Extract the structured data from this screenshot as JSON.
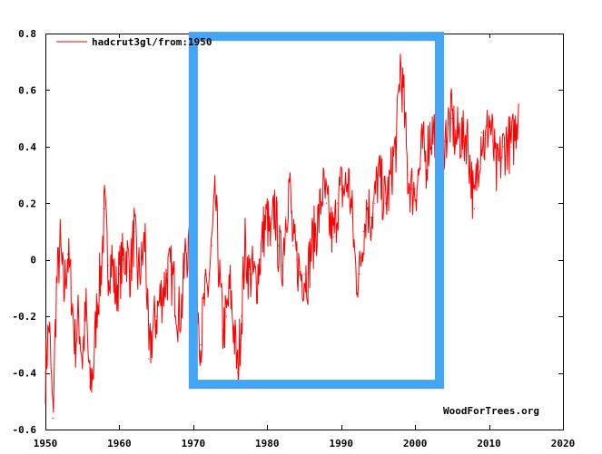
{
  "chart_data": {
    "type": "line",
    "title": "",
    "xlabel": "",
    "ylabel": "",
    "xlim": [
      1950,
      2020
    ],
    "ylim": [
      -0.6,
      0.8
    ],
    "x_ticks": [
      "1950",
      "1960",
      "1970",
      "1980",
      "1990",
      "2000",
      "2010",
      "2020"
    ],
    "y_ticks": [
      "0.8",
      "0.6",
      "0.4",
      "0.2",
      "0",
      "-0.2",
      "-0.4",
      "-0.6"
    ],
    "grid": false,
    "legend_position": "top-left",
    "series": [
      {
        "name": "hadcrut3gl/from:1950",
        "color": "#ff0000",
        "x": [
          1950.0,
          1950.5,
          1951.0,
          1951.5,
          1952.0,
          1952.5,
          1953.0,
          1953.5,
          1954.0,
          1954.5,
          1955.0,
          1955.5,
          1956.0,
          1956.5,
          1957.0,
          1957.5,
          1958.0,
          1958.5,
          1959.0,
          1959.5,
          1960.0,
          1960.5,
          1961.0,
          1961.5,
          1962.0,
          1962.5,
          1963.0,
          1963.5,
          1964.0,
          1964.5,
          1965.0,
          1965.5,
          1966.0,
          1966.5,
          1967.0,
          1967.5,
          1968.0,
          1968.5,
          1969.0,
          1969.5,
          1970.0,
          1970.5,
          1971.0,
          1971.5,
          1972.0,
          1972.5,
          1973.0,
          1973.5,
          1974.0,
          1974.5,
          1975.0,
          1975.5,
          1976.0,
          1976.5,
          1977.0,
          1977.5,
          1978.0,
          1978.5,
          1979.0,
          1979.5,
          1980.0,
          1980.5,
          1981.0,
          1981.5,
          1982.0,
          1982.5,
          1983.0,
          1983.5,
          1984.0,
          1984.5,
          1985.0,
          1985.5,
          1986.0,
          1986.5,
          1987.0,
          1987.5,
          1988.0,
          1988.5,
          1989.0,
          1989.5,
          1990.0,
          1990.5,
          1991.0,
          1991.5,
          1992.0,
          1992.5,
          1993.0,
          1993.5,
          1994.0,
          1994.5,
          1995.0,
          1995.5,
          1996.0,
          1996.5,
          1997.0,
          1997.5,
          1998.0,
          1998.5,
          1999.0,
          1999.5,
          2000.0,
          2000.5,
          2001.0,
          2001.5,
          2002.0,
          2002.5,
          2003.0,
          2003.5,
          2004.0,
          2004.5,
          2005.0,
          2005.5,
          2006.0,
          2006.5,
          2007.0,
          2007.5,
          2008.0,
          2008.5,
          2009.0,
          2009.5,
          2010.0,
          2010.5,
          2011.0,
          2011.5,
          2012.0,
          2012.5,
          2013.0,
          2013.5,
          2014.0
        ],
        "values": [
          -0.4,
          -0.22,
          -0.56,
          -0.1,
          0.05,
          -0.12,
          0.02,
          -0.1,
          -0.3,
          -0.2,
          -0.35,
          -0.18,
          -0.45,
          -0.38,
          -0.15,
          -0.05,
          0.18,
          -0.02,
          0.0,
          -0.12,
          -0.05,
          0.0,
          0.02,
          -0.04,
          0.1,
          -0.05,
          -0.02,
          0.08,
          -0.35,
          -0.25,
          -0.2,
          -0.14,
          -0.1,
          -0.05,
          -0.05,
          -0.1,
          -0.2,
          -0.15,
          0.05,
          0.0,
          -0.05,
          -0.1,
          -0.3,
          -0.15,
          -0.1,
          0.05,
          0.22,
          -0.05,
          -0.25,
          -0.2,
          -0.1,
          -0.25,
          -0.4,
          -0.2,
          0.05,
          -0.05,
          -0.05,
          -0.08,
          0.0,
          0.1,
          0.15,
          0.05,
          0.2,
          0.05,
          -0.02,
          0.15,
          0.28,
          0.05,
          0.0,
          -0.05,
          -0.05,
          -0.05,
          0.05,
          0.1,
          0.15,
          0.25,
          0.2,
          0.12,
          0.08,
          0.2,
          0.25,
          0.25,
          0.28,
          0.15,
          -0.05,
          -0.05,
          0.1,
          0.2,
          0.15,
          0.2,
          0.3,
          0.25,
          0.2,
          0.25,
          0.35,
          0.42,
          0.7,
          0.55,
          0.3,
          0.25,
          0.25,
          0.3,
          0.4,
          0.35,
          0.45,
          0.45,
          0.5,
          0.45,
          0.42,
          0.48,
          0.5,
          0.42,
          0.45,
          0.42,
          0.45,
          0.32,
          0.18,
          0.35,
          0.45,
          0.4,
          0.5,
          0.42,
          0.3,
          0.35,
          0.4,
          0.42,
          0.4,
          0.45,
          0.55
        ]
      }
    ],
    "annotations": [
      {
        "type": "rectangle",
        "color": "#42a5f5",
        "x0": 1970.0,
        "x1": 2003.3,
        "y0": -0.44,
        "y1": 0.79
      }
    ],
    "watermark": "WoodForTrees.org"
  }
}
